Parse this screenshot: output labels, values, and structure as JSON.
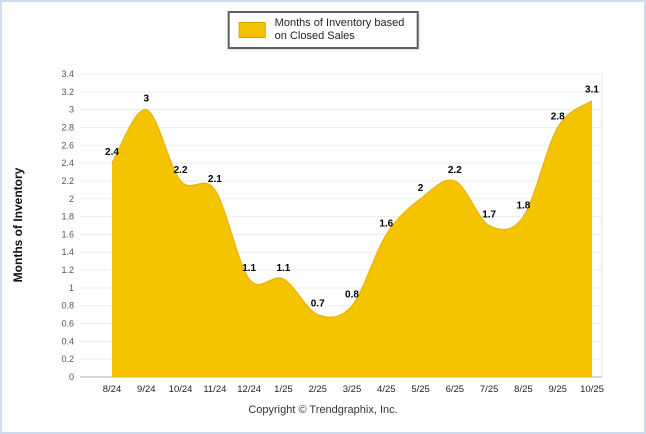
{
  "page": {
    "background": "#ffffff",
    "border_color": "#cfdcee"
  },
  "legend": {
    "swatch_color": "#f5c400",
    "label_line1": "Months of Inventory based",
    "label_line2": "on Closed Sales"
  },
  "footer": {
    "copyright": "Copyright © Trendgraphix, Inc."
  },
  "chart_data": {
    "type": "area",
    "title": "",
    "xlabel": "",
    "ylabel": "Months of Inventory",
    "categories": [
      "8/24",
      "9/24",
      "10/24",
      "11/24",
      "12/24",
      "1/25",
      "2/25",
      "3/25",
      "4/25",
      "5/25",
      "6/25",
      "7/25",
      "8/25",
      "9/25",
      "10/25"
    ],
    "values": [
      2.4,
      3,
      2.2,
      2.1,
      1.1,
      1.1,
      0.7,
      0.8,
      1.6,
      2,
      2.2,
      1.7,
      1.8,
      2.8,
      3.1
    ],
    "labels": [
      "2.4",
      "3",
      "2.2",
      "2.1",
      "1.1",
      "1.1",
      "0.7",
      "0.8",
      "1.6",
      "2",
      "2.2",
      "1.7",
      "1.8",
      "2.8",
      "3.1"
    ],
    "ylim": [
      0,
      3.4
    ],
    "ytick_step": 0.2,
    "grid": true,
    "legend_position": "top-center",
    "area_color": "#f5c400",
    "line_color": "#e8b206",
    "axis_color": "#b0b0b0",
    "gridline_color": "#ededed"
  }
}
